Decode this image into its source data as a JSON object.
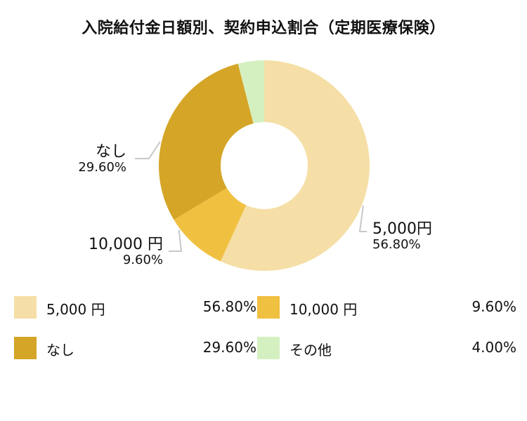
{
  "chart_data": {
    "type": "pie",
    "variant": "donut",
    "title": "入院給付金日額別、契約申込割合（定期医療保険）",
    "slices": [
      {
        "label": "5,000円",
        "legend_label": "5,000 円",
        "value": 56.8,
        "display": "56.80%",
        "color": "#F5DFA6",
        "callout_side": "right"
      },
      {
        "label": "10,000 円",
        "legend_label": "10,000 円",
        "value": 9.6,
        "display": "9.60%",
        "color": "#F0C040",
        "callout_side": "left"
      },
      {
        "label": "なし",
        "legend_label": "なし",
        "value": 29.6,
        "display": "29.60%",
        "color": "#D4A526",
        "callout_side": "left"
      },
      {
        "label": "その他",
        "legend_label": "その他",
        "value": 4.0,
        "display": "4.00%",
        "color": "#D5F0C0",
        "callout_side": "none"
      }
    ],
    "legend_placement": "bottom"
  }
}
